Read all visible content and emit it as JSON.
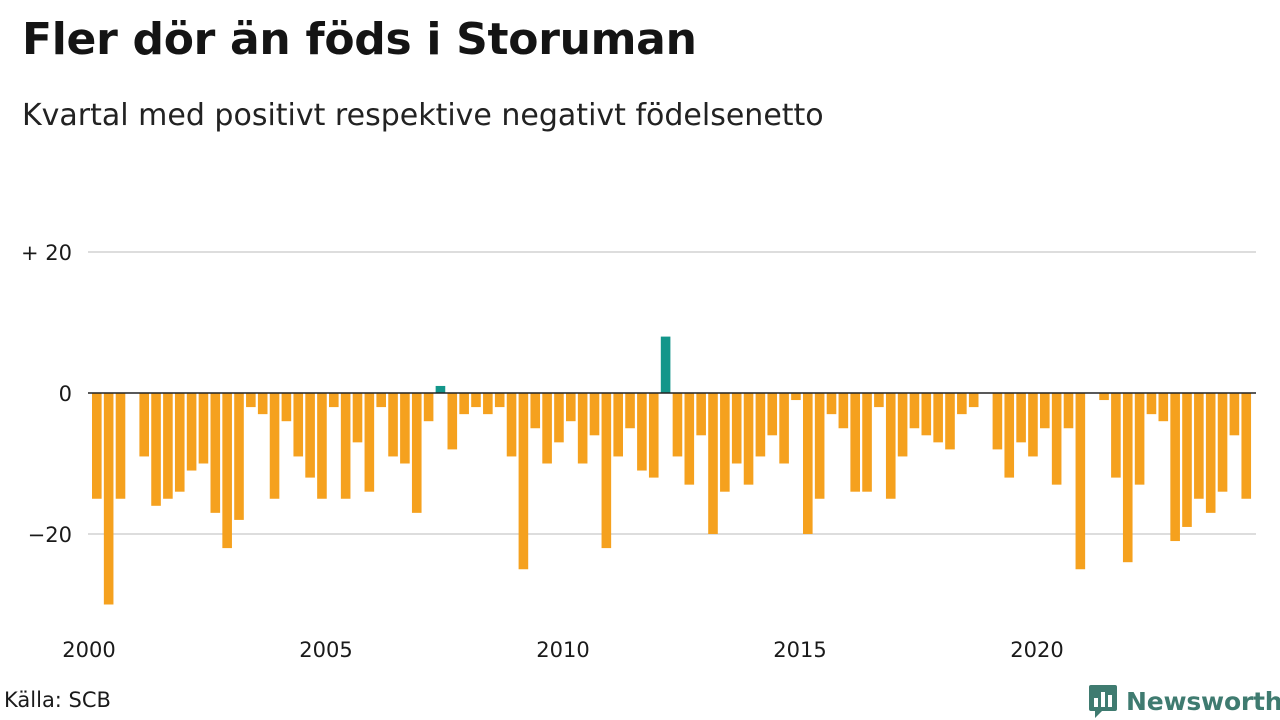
{
  "title": "Fler dör än föds i Storuman",
  "subtitle": "Kvartal med positivt respektive negativt födelsenetto",
  "source": "Källa: SCB",
  "brand": "Newsworthy",
  "colors": {
    "negative": "#f5a11e",
    "positive": "#13968a",
    "grid": "#dddddd",
    "zero_line": "#222222",
    "brand": "#3f7b70"
  },
  "chart_data": {
    "type": "bar",
    "x_start": "2000 Q1",
    "xticks": [
      "2000",
      "2005",
      "2010",
      "2015",
      "2020"
    ],
    "ytick_labels": [
      "+ 20",
      "0",
      "−20"
    ],
    "ytick_values": [
      20,
      0,
      -20
    ],
    "ylim": [
      -30,
      20
    ],
    "grid": true,
    "values": [
      -15,
      -30,
      -15,
      0,
      -9,
      -16,
      -15,
      -14,
      -11,
      -10,
      -17,
      -22,
      -18,
      -2,
      -3,
      -15,
      -4,
      -9,
      -12,
      -15,
      -2,
      -15,
      -7,
      -14,
      -2,
      -9,
      -10,
      -17,
      -4,
      1,
      -8,
      -3,
      -2,
      -3,
      -2,
      -9,
      -25,
      -5,
      -10,
      -7,
      -4,
      -10,
      -6,
      -22,
      -9,
      -5,
      -11,
      -12,
      8,
      -9,
      -13,
      -6,
      -20,
      -14,
      -10,
      -13,
      -9,
      -6,
      -10,
      -1,
      -20,
      -15,
      -3,
      -5,
      -14,
      -14,
      -2,
      -15,
      -9,
      -5,
      -6,
      -7,
      -8,
      -3,
      -2,
      0,
      -8,
      -12,
      -7,
      -9,
      -5,
      -13,
      -5,
      -25,
      0,
      -1,
      -12,
      -24,
      -13,
      -3,
      -4,
      -21,
      -19,
      -15,
      -17,
      -14,
      -6,
      -15
    ]
  }
}
